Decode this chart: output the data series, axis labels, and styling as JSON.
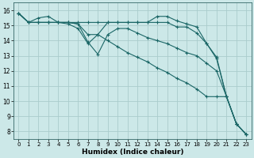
{
  "background_color": "#cce8e8",
  "grid_color": "#aacccc",
  "line_color": "#1a6666",
  "xlabel": "Humidex (Indice chaleur)",
  "xlim": [
    -0.5,
    23.5
  ],
  "ylim": [
    7.5,
    16.5
  ],
  "xticks": [
    0,
    1,
    2,
    3,
    4,
    5,
    6,
    7,
    8,
    9,
    10,
    11,
    12,
    13,
    14,
    15,
    16,
    17,
    18,
    19,
    20,
    21,
    22,
    23
  ],
  "yticks": [
    8,
    9,
    10,
    11,
    12,
    13,
    14,
    15,
    16
  ],
  "series": [
    {
      "x": [
        0,
        1,
        2,
        3,
        4,
        5,
        6,
        7,
        8,
        9,
        10,
        11,
        12,
        13,
        14,
        15,
        16,
        17,
        18,
        19,
        20,
        21,
        22,
        23
      ],
      "y": [
        15.8,
        15.2,
        15.2,
        15.2,
        15.2,
        15.2,
        15.2,
        15.2,
        15.2,
        15.2,
        15.2,
        15.2,
        15.2,
        15.2,
        15.6,
        15.6,
        15.3,
        15.1,
        14.9,
        13.8,
        12.8,
        10.3,
        8.5,
        7.8
      ]
    },
    {
      "x": [
        0,
        1,
        2,
        3,
        4,
        5,
        6,
        7,
        8,
        9,
        10,
        11,
        12,
        13,
        14,
        15,
        16,
        17,
        18,
        19,
        20,
        21,
        22,
        23
      ],
      "y": [
        15.8,
        15.2,
        15.5,
        15.6,
        15.2,
        15.2,
        15.1,
        14.4,
        14.4,
        15.2,
        15.2,
        15.2,
        15.2,
        15.2,
        15.2,
        15.2,
        14.9,
        14.9,
        14.5,
        13.8,
        12.9,
        10.3,
        8.5,
        7.8
      ]
    },
    {
      "x": [
        0,
        1,
        2,
        3,
        4,
        5,
        6,
        7,
        8,
        9,
        10,
        11,
        12,
        13,
        14,
        15,
        16,
        17,
        18,
        19,
        20,
        21,
        22,
        23
      ],
      "y": [
        15.8,
        15.2,
        15.2,
        15.2,
        15.2,
        15.2,
        15.1,
        13.9,
        13.1,
        14.4,
        14.8,
        14.8,
        14.5,
        14.2,
        14.0,
        13.8,
        13.5,
        13.2,
        13.0,
        12.5,
        12.0,
        10.3,
        8.5,
        7.8
      ]
    },
    {
      "x": [
        0,
        1,
        2,
        3,
        4,
        5,
        6,
        7,
        8,
        9,
        10,
        11,
        12,
        13,
        14,
        15,
        16,
        17,
        18,
        19,
        20,
        21,
        22,
        23
      ],
      "y": [
        15.8,
        15.2,
        15.2,
        15.2,
        15.2,
        15.1,
        14.8,
        13.8,
        14.4,
        14.0,
        13.6,
        13.2,
        12.9,
        12.6,
        12.2,
        11.9,
        11.5,
        11.2,
        10.8,
        10.3,
        10.3,
        10.3,
        8.5,
        7.8
      ]
    }
  ]
}
